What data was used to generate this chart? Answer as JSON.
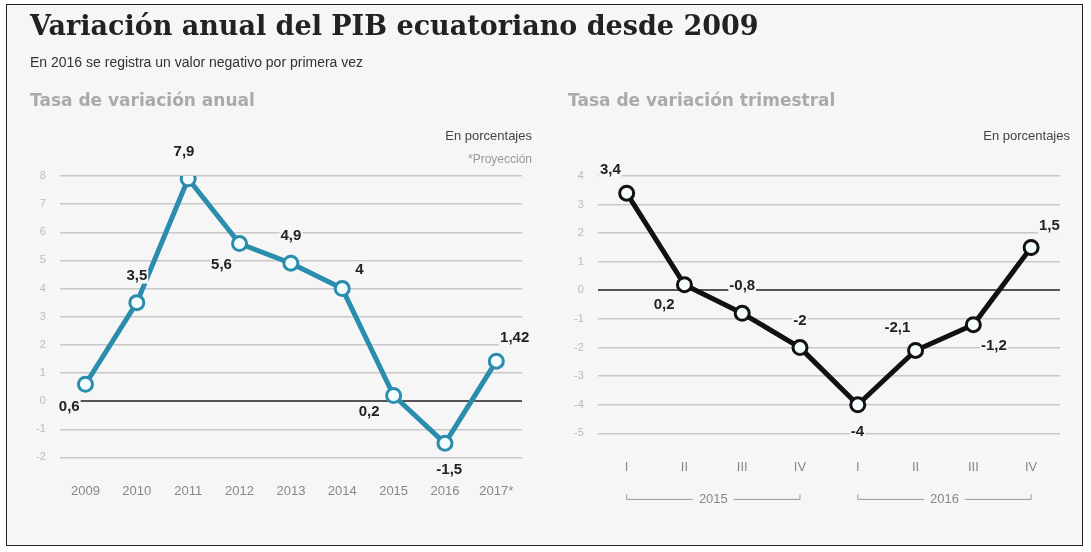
{
  "chart_data": [
    {
      "type": "line",
      "title": "Variación anual del PIB ecuatoriano desde 2009",
      "subtitle": "En 2016 se registra un valor negativo por primera vez",
      "annotations": [
        "Tasa de variación anual",
        "En porcentajes",
        "*Proyección"
      ],
      "categories": [
        "2009",
        "2010",
        "2011",
        "2012",
        "2013",
        "2014",
        "2015",
        "2016",
        "2017*"
      ],
      "series": [
        {
          "color": "#2b8dad",
          "values": [
            0.6,
            3.5,
            7.9,
            5.6,
            4.9,
            4,
            0.2,
            -1.5,
            1.42
          ],
          "value_labels": [
            "0,6",
            "3,5",
            "7,9",
            "5,6",
            "4,9",
            "4",
            "0,2",
            "-1,5",
            "1,42"
          ]
        }
      ],
      "ylim": [
        -2,
        8
      ],
      "yticks": [
        -2,
        -1,
        0,
        1,
        2,
        3,
        4,
        5,
        6,
        7,
        8
      ],
      "grid": "y",
      "marker": "circle",
      "legend": false
    },
    {
      "type": "line",
      "title": "Tasa de variación trimestral",
      "annotations": [
        "En porcentajes",
        {
          "text": "2015"
        },
        {
          "text": "2016"
        }
      ],
      "categories": [
        "I",
        "II",
        "III",
        "IV",
        "I",
        "II",
        "III",
        "IV"
      ],
      "series": [
        {
          "color": "#111111",
          "values": [
            3.4,
            0.2,
            -0.8,
            -2,
            -4,
            -2.1,
            -1.2,
            1.5
          ],
          "value_labels": [
            "3,4",
            "0,2",
            "-0,8",
            "-2",
            "-4",
            "-2,1",
            "-1,2",
            "1,5"
          ]
        }
      ],
      "ylim": [
        -5,
        4
      ],
      "yticks": [
        -5,
        -4,
        -3,
        -2,
        -1,
        0,
        1,
        2,
        3,
        4
      ],
      "grid": "y",
      "marker": "circle",
      "legend": false
    }
  ]
}
